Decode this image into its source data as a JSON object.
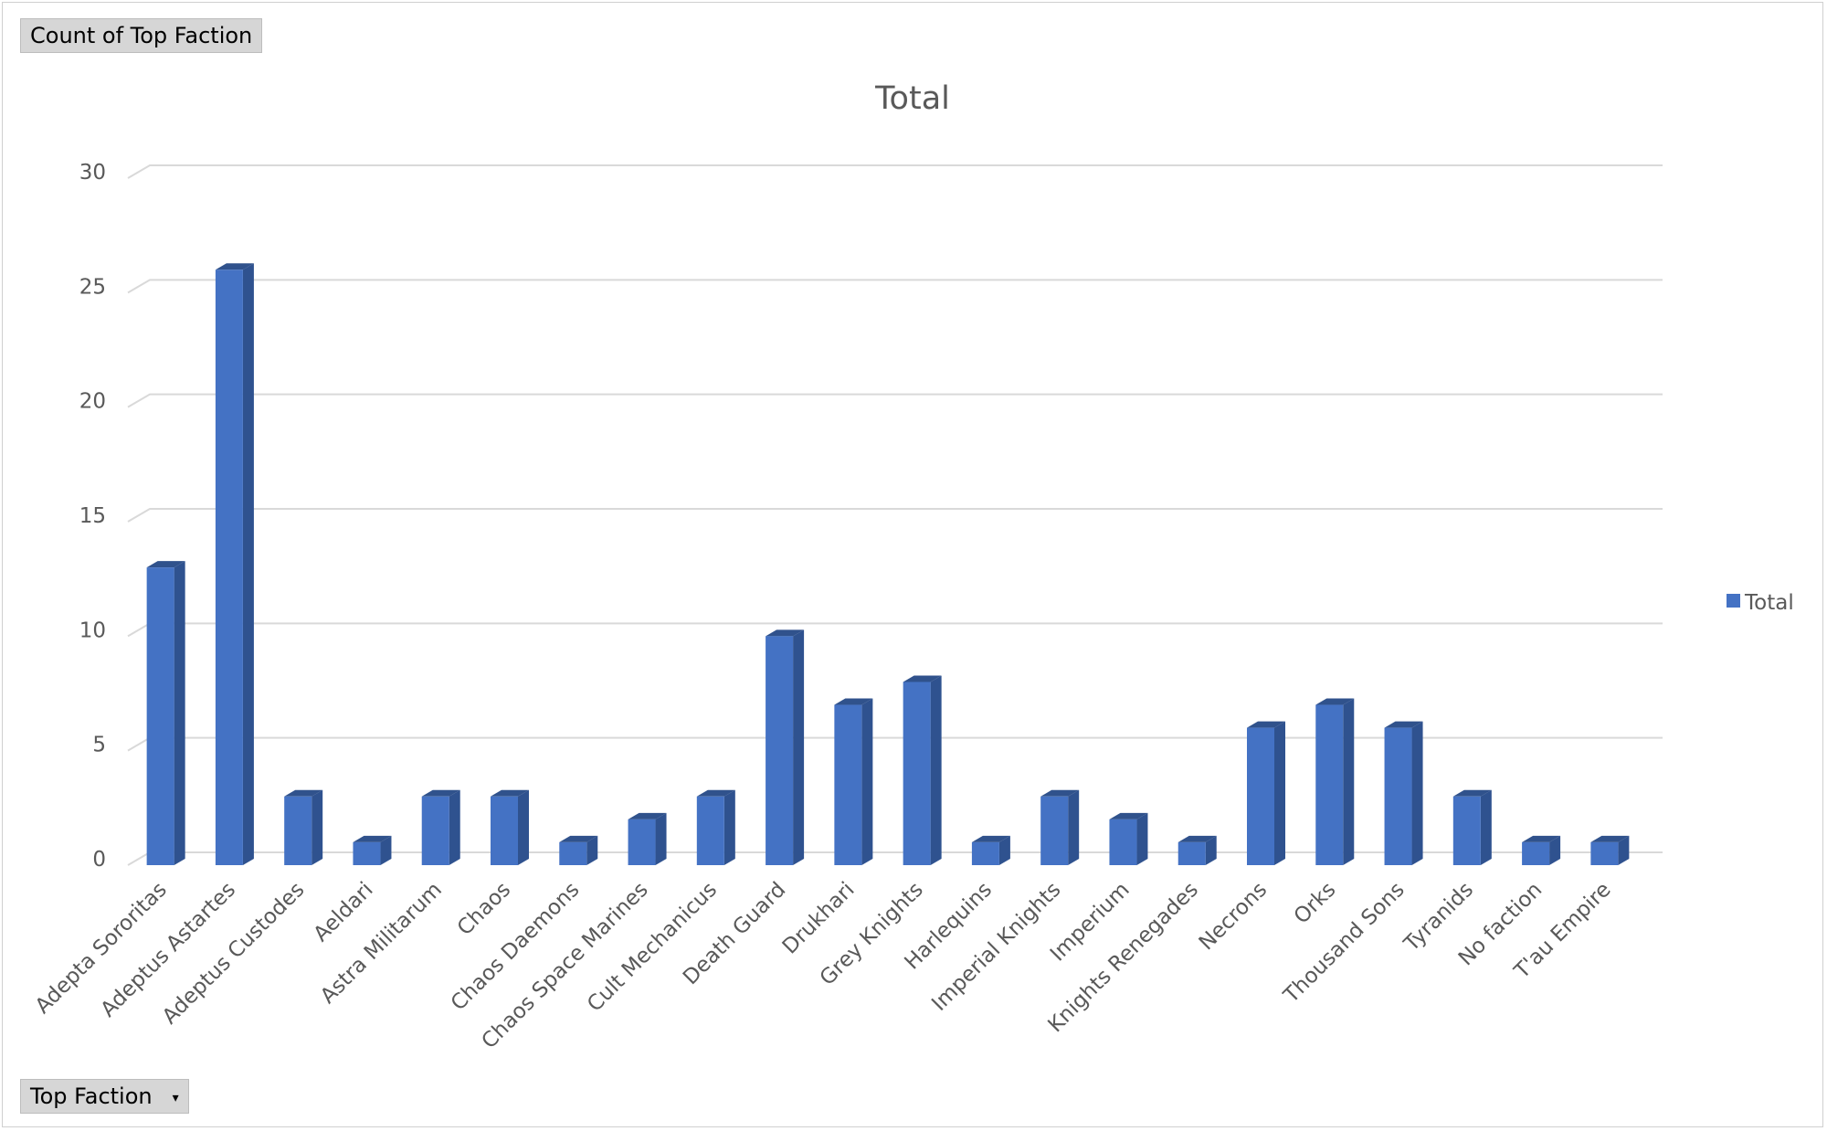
{
  "pivot": {
    "value_field_label": "Count of Top Faction",
    "axis_field_label": "Top Faction",
    "axis_field_dropdown_icon": "chevron-down-icon"
  },
  "colors": {
    "bar_front": "#4472C4",
    "bar_side": "#2F528F",
    "bar_top": "#30528c",
    "gridline": "#d9d9d9",
    "text": "#595959"
  },
  "chart_data": {
    "type": "bar",
    "title": "Total",
    "xlabel": "",
    "ylabel": "",
    "ylim": [
      0,
      30
    ],
    "yticks": [
      0,
      5,
      10,
      15,
      20,
      25,
      30
    ],
    "grid": true,
    "legend_position": "right",
    "style": "3d-column",
    "categories": [
      "Adepta Sororitas",
      "Adeptus Astartes",
      "Adeptus Custodes",
      "Aeldari",
      "Astra Militarum",
      "Chaos",
      "Chaos Daemons",
      "Chaos Space Marines",
      "Cult Mechanicus",
      "Death Guard",
      "Drukhari",
      "Grey Knights",
      "Harlequins",
      "Imperial Knights",
      "Imperium",
      "Knights Renegades",
      "Necrons",
      "Orks",
      "Thousand Sons",
      "Tyranids",
      "No faction",
      "T'au Empire"
    ],
    "series": [
      {
        "name": "Total",
        "values": [
          13,
          26,
          3,
          1,
          3,
          3,
          1,
          2,
          3,
          10,
          7,
          8,
          1,
          3,
          2,
          1,
          6,
          7,
          6,
          3,
          1,
          1
        ]
      }
    ]
  }
}
